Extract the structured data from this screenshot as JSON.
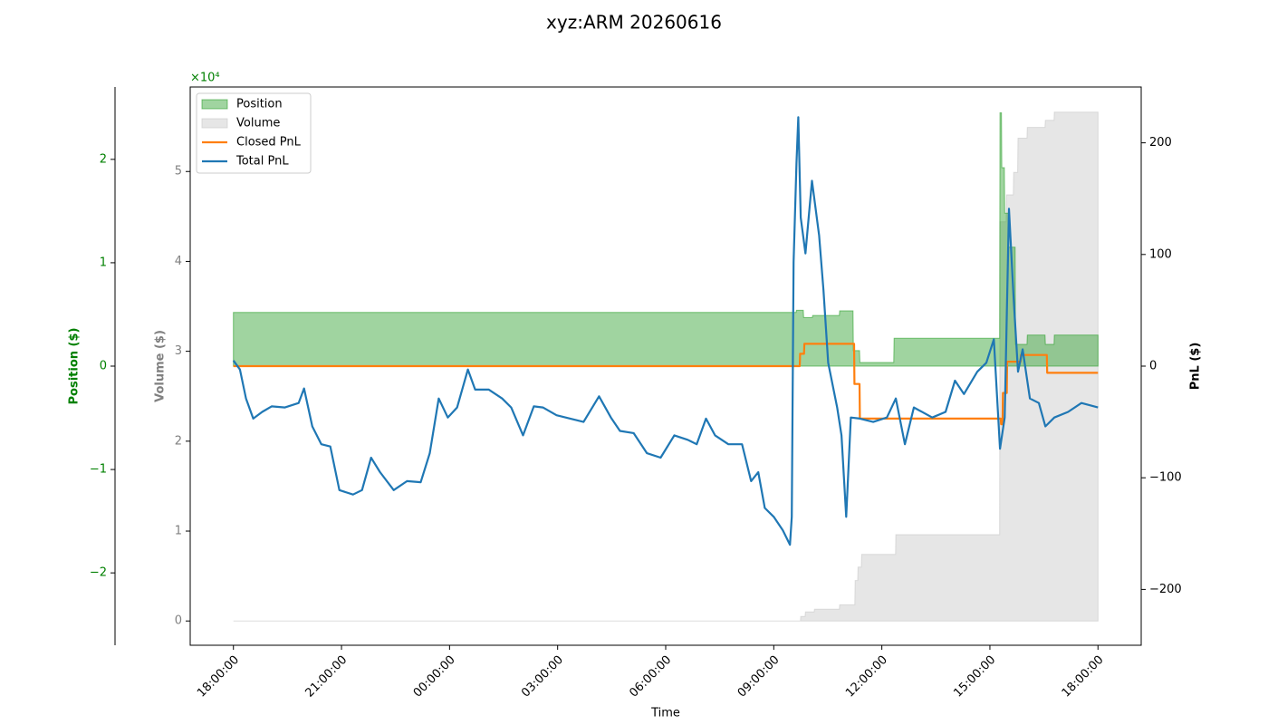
{
  "chart_data": {
    "type": "multi-axis",
    "title": "xyz:ARM 20260616",
    "legend": "upper left",
    "x_axis": {
      "label": "Time",
      "lim": [
        -1.2,
        25.2
      ],
      "ticks": [
        {
          "value": 0,
          "label": "18:00:00"
        },
        {
          "value": 3,
          "label": "21:00:00"
        },
        {
          "value": 6,
          "label": "00:00:00"
        },
        {
          "value": 9,
          "label": "03:00:00"
        },
        {
          "value": 12,
          "label": "06:00:00"
        },
        {
          "value": 15,
          "label": "09:00:00"
        },
        {
          "value": 18,
          "label": "12:00:00"
        },
        {
          "value": 21,
          "label": "15:00:00"
        },
        {
          "value": 24,
          "label": "18:00:00"
        }
      ]
    },
    "axes": {
      "position": {
        "label": "Position ($)",
        "color": "green",
        "lim": [
          -27000,
          27000
        ],
        "offset_label": "×10⁴",
        "ticks": [
          {
            "value": -20000,
            "label": "−2"
          },
          {
            "value": -10000,
            "label": "−1"
          },
          0,
          {
            "value": 10000,
            "label": "1"
          },
          {
            "value": 20000,
            "label": "2"
          }
        ]
      },
      "volume": {
        "label": "Volume ($)",
        "color": "gray",
        "lim": [
          -2700,
          59400
        ],
        "ticks": [
          0,
          {
            "value": 10000,
            "label": "1"
          },
          {
            "value": 20000,
            "label": "2"
          },
          {
            "value": 30000,
            "label": "3"
          },
          {
            "value": 40000,
            "label": "4"
          },
          {
            "value": 50000,
            "label": "5"
          }
        ]
      },
      "pnl": {
        "label": "PnL ($)",
        "color": "black",
        "lim": [
          -250,
          250
        ],
        "ticks": [
          {
            "value": -200,
            "label": "−200"
          },
          {
            "value": -100,
            "label": "−100"
          },
          0,
          100,
          200
        ]
      }
    },
    "series": [
      {
        "name": "Position",
        "type": "area",
        "axis": "position",
        "color": "#2ca02c",
        "x": [
          0,
          15.62,
          15.63,
          15.82,
          15.83,
          16.07,
          16.08,
          16.82,
          16.83,
          17.2,
          17.21,
          17.38,
          17.39,
          18.33,
          18.34,
          21.27,
          21.28,
          21.32,
          21.33,
          21.4,
          21.41,
          21.52,
          21.53,
          21.7,
          21.71,
          22.03,
          22.04,
          22.53,
          22.54,
          22.78,
          22.79,
          24
        ],
        "values": [
          5200,
          5200,
          5400,
          5400,
          4700,
          4700,
          4900,
          4900,
          5350,
          5350,
          1500,
          1500,
          350,
          350,
          2700,
          2700,
          24500,
          24500,
          19200,
          19200,
          14800,
          14800,
          11500,
          11500,
          2100,
          2100,
          3000,
          3000,
          2100,
          2100,
          3000,
          3000
        ]
      },
      {
        "name": "Volume",
        "type": "area",
        "axis": "volume",
        "color": "#c8c8c8",
        "x": [
          0,
          15.74,
          15.75,
          15.87,
          15.88,
          16.12,
          16.13,
          16.82,
          16.83,
          17.25,
          17.26,
          17.33,
          17.34,
          17.43,
          17.44,
          18.38,
          18.39,
          21.27,
          21.28,
          21.45,
          21.46,
          21.65,
          21.66,
          21.77,
          21.78,
          22.03,
          22.04,
          22.53,
          22.54,
          22.78,
          22.79,
          24
        ],
        "values": [
          0,
          0,
          500,
          500,
          1000,
          1000,
          1300,
          1300,
          1800,
          1800,
          4500,
          4500,
          6000,
          6000,
          7400,
          7400,
          9600,
          9600,
          44400,
          44400,
          47400,
          47400,
          49900,
          49900,
          53700,
          53700,
          54900,
          54900,
          55700,
          55700,
          56600,
          56600
        ]
      },
      {
        "name": "Closed PnL",
        "type": "line",
        "axis": "pnl",
        "color": "#ff7f0e",
        "x": [
          0,
          15.72,
          15.73,
          15.84,
          15.85,
          17.23,
          17.24,
          17.38,
          17.39,
          21.3,
          21.31,
          21.35,
          21.36,
          21.47,
          21.48,
          21.85,
          21.86,
          22.58,
          22.59,
          24
        ],
        "values": [
          0,
          0,
          11,
          11,
          20,
          20,
          -16,
          -16,
          -47,
          -47,
          -52,
          -52,
          -24,
          -24,
          4,
          4,
          10,
          10,
          -6,
          -6
        ]
      },
      {
        "name": "Total PnL",
        "type": "line",
        "axis": "pnl",
        "color": "#1f77b4",
        "x": [
          0,
          0.18,
          0.35,
          0.55,
          0.8,
          1.06,
          1.43,
          1.81,
          1.96,
          2.19,
          2.44,
          2.69,
          2.94,
          3.32,
          3.57,
          3.82,
          4.07,
          4.45,
          4.82,
          5.2,
          5.45,
          5.7,
          5.95,
          6.21,
          6.51,
          6.71,
          7.09,
          7.46,
          7.71,
          8.04,
          8.34,
          8.59,
          8.97,
          9.35,
          9.72,
          10.15,
          10.48,
          10.73,
          11.11,
          11.48,
          11.86,
          12.24,
          12.61,
          12.86,
          13.12,
          13.37,
          13.74,
          14.12,
          14.37,
          14.57,
          14.75,
          15.0,
          15.25,
          15.45,
          15.5,
          15.55,
          15.63,
          15.68,
          15.75,
          15.88,
          16.06,
          16.26,
          16.38,
          16.51,
          16.76,
          16.88,
          17.01,
          17.14,
          17.39,
          17.76,
          18.14,
          18.39,
          18.64,
          18.89,
          19.4,
          19.77,
          20.03,
          20.28,
          20.65,
          20.9,
          21.11,
          21.28,
          21.41,
          21.53,
          21.66,
          21.78,
          21.91,
          22.11,
          22.36,
          22.54,
          22.79,
          23.17,
          23.54,
          24
        ],
        "values": [
          5,
          -3,
          -29,
          -47,
          -41,
          -36,
          -37,
          -33,
          -20,
          -54,
          -70,
          -72,
          -111,
          -115,
          -111,
          -82,
          -95,
          -111,
          -103,
          -104,
          -78,
          -29,
          -46,
          -37,
          -3,
          -21,
          -21,
          -29,
          -37,
          -62,
          -36,
          -37,
          -44,
          -47,
          -50,
          -27,
          -46,
          -58,
          -60,
          -78,
          -82,
          -62,
          -66,
          -70,
          -47,
          -62,
          -70,
          -70,
          -103,
          -95,
          -127,
          -135,
          -147,
          -160,
          -135,
          93,
          182,
          223,
          133,
          101,
          166,
          117,
          68,
          3,
          -37,
          -62,
          -135,
          -46,
          -47,
          -50,
          -46,
          -29,
          -70,
          -37,
          -46,
          -41,
          -13,
          -25,
          -5,
          3,
          24,
          -74,
          -46,
          141,
          60,
          -5,
          15,
          -29,
          -33,
          -54,
          -46,
          -41,
          -33,
          -37
        ]
      }
    ]
  }
}
